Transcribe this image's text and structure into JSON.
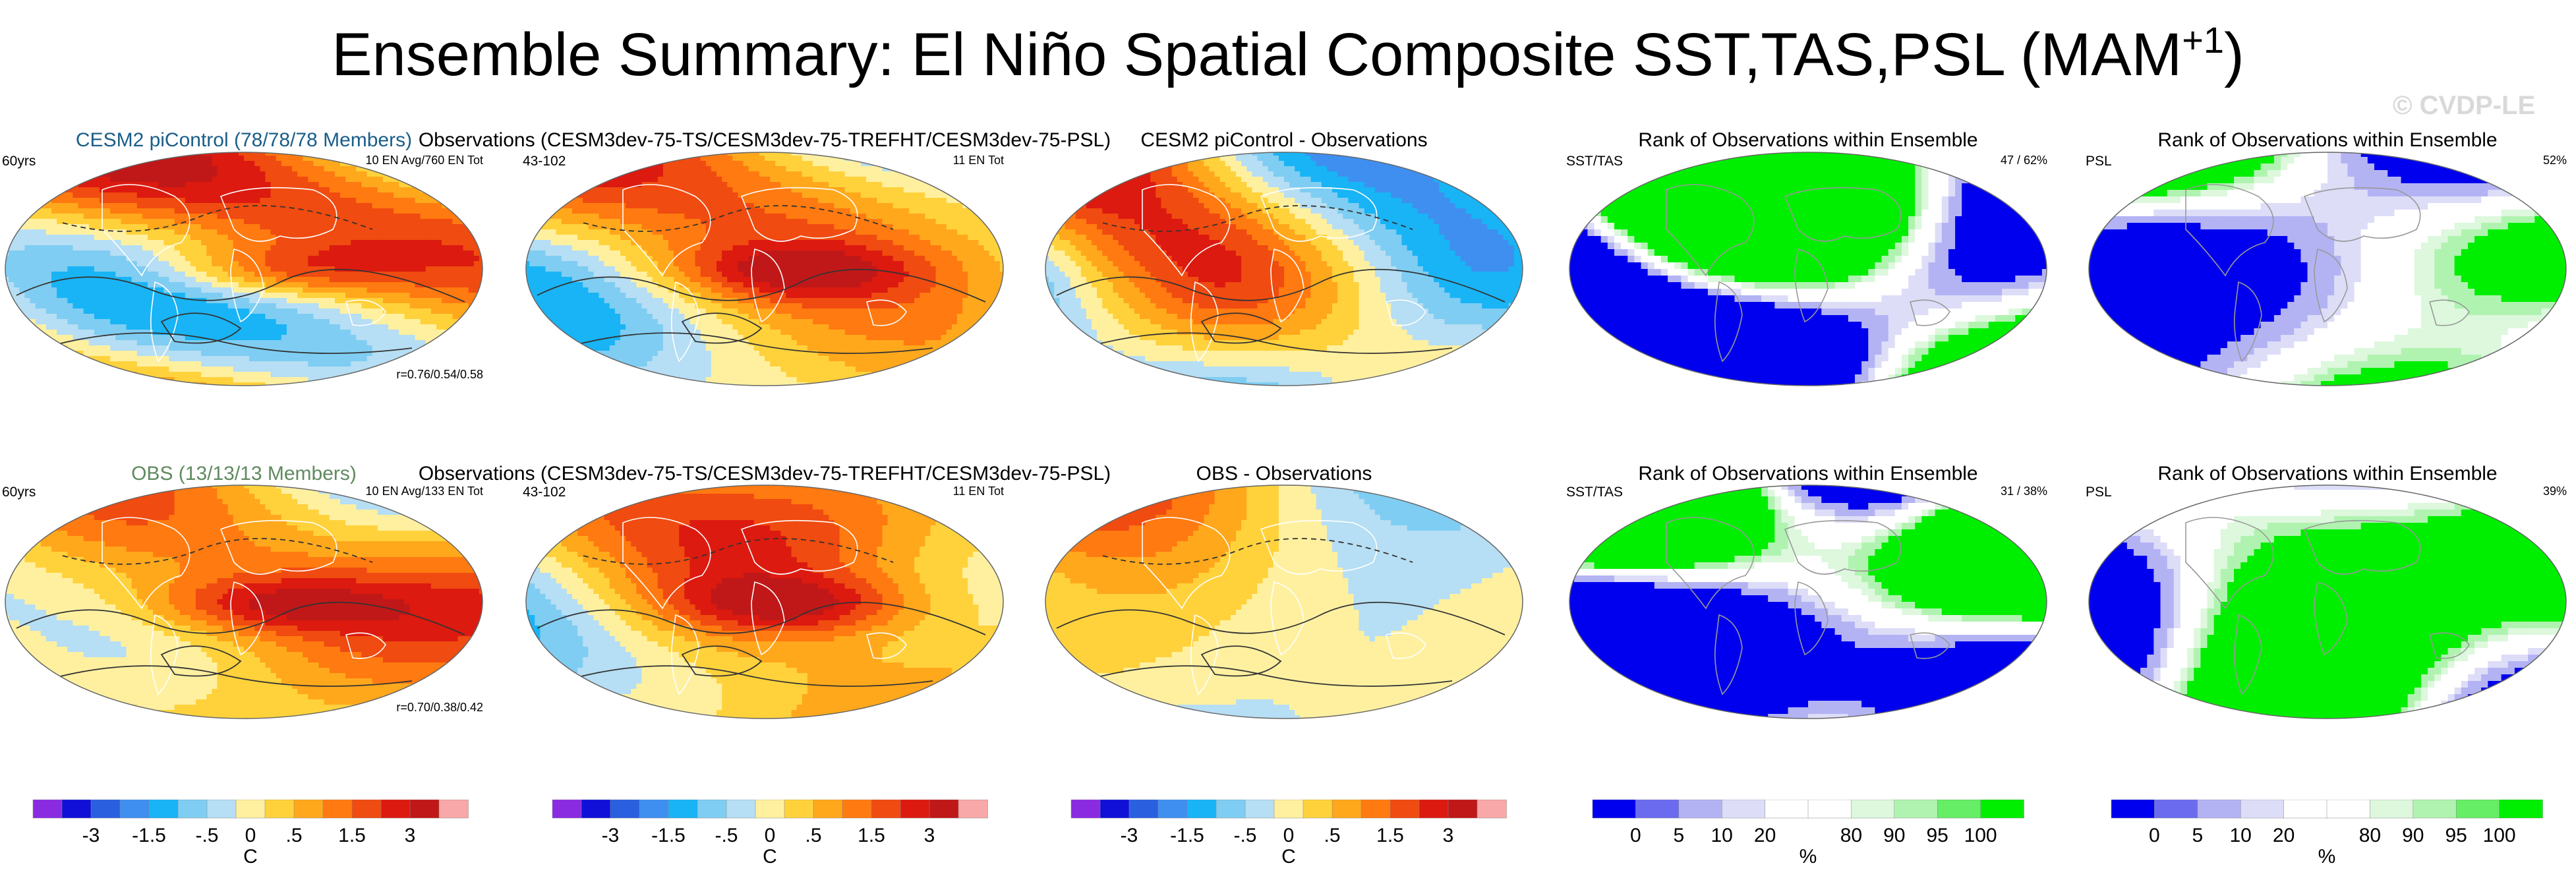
{
  "title": {
    "main": "Ensemble Summary: El Niño Spatial Composite SST,TAS,PSL (MAM",
    "sup": "+1",
    "close": ")"
  },
  "watermark": "© CVDP-LE",
  "colors": {
    "cesm2_title": "#1a5e8a",
    "obs_title": "#5f8a5f",
    "rank_blue": "#0000ee",
    "rank_green": "#00ee00"
  },
  "rows": [
    {
      "panels": [
        {
          "title": "CESM2 piControl (78/78/78 Members)",
          "title_color": "cesm2_title",
          "tl": "60yrs",
          "tr": "10 EN Avg/760 EN Tot",
          "br": "r=0.76/0.54/0.58",
          "kind": "anom"
        },
        {
          "title": "Observations (CESM3dev-75-TS/CESM3dev-75-TREFHT/CESM3dev-75-PSL)",
          "tl": "43-102",
          "tr": "11 EN Tot",
          "kind": "anom"
        },
        {
          "title": "CESM2 piControl - Observations",
          "kind": "diff"
        },
        {
          "title": "Rank of Observations within Ensemble",
          "tl": "SST/TAS",
          "tr": "47 /  62%",
          "kind": "rank"
        },
        {
          "title": "Rank of Observations within Ensemble",
          "tl": "PSL",
          "tr": "52%",
          "kind": "rankpsl"
        }
      ]
    },
    {
      "panels": [
        {
          "title": "OBS (13/13/13 Members)",
          "title_color": "obs_title",
          "tl": "60yrs",
          "tr": "10 EN Avg/133 EN Tot",
          "br": "r=0.70/0.38/0.42",
          "kind": "anom"
        },
        {
          "title": "Observations (CESM3dev-75-TS/CESM3dev-75-TREFHT/CESM3dev-75-PSL)",
          "tl": "43-102",
          "tr": "11 EN Tot",
          "kind": "anom"
        },
        {
          "title": "OBS - Observations",
          "kind": "diff"
        },
        {
          "title": "Rank of Observations within Ensemble",
          "tl": "SST/TAS",
          "tr": "31 /  38%",
          "kind": "rank"
        },
        {
          "title": "Rank of Observations within Ensemble",
          "tl": "PSL",
          "tr": "39%",
          "kind": "rankpsl"
        }
      ]
    }
  ],
  "chart_data": [
    {
      "type": "heatmap",
      "name": "temperature anomaly colorbar",
      "unit": "C",
      "tick_labels": [
        "-3",
        "-1.5",
        "-.5",
        "0",
        ".5",
        "1.5",
        "3"
      ],
      "colors": [
        "#8a2be2",
        "#1010d8",
        "#2a5fe0",
        "#3e8ff0",
        "#19b4f5",
        "#7fcdf2",
        "#b6def4",
        "#fff0a0",
        "#ffd23c",
        "#ffa81c",
        "#ff7a10",
        "#f04b10",
        "#dc1a10",
        "#c01818",
        "#f8a8a8"
      ]
    },
    {
      "type": "heatmap",
      "name": "rank percentile colorbar",
      "unit": "%",
      "tick_labels": [
        "0",
        "5",
        "10",
        "20",
        "80",
        "90",
        "95",
        "100"
      ],
      "colors": [
        "#0000ee",
        "#6b6bf0",
        "#b3b3f4",
        "#ddddf8",
        "#ffffff",
        "#ffffff",
        "#ddf8dd",
        "#b0f3b0",
        "#66ee66",
        "#00ee00"
      ]
    }
  ]
}
